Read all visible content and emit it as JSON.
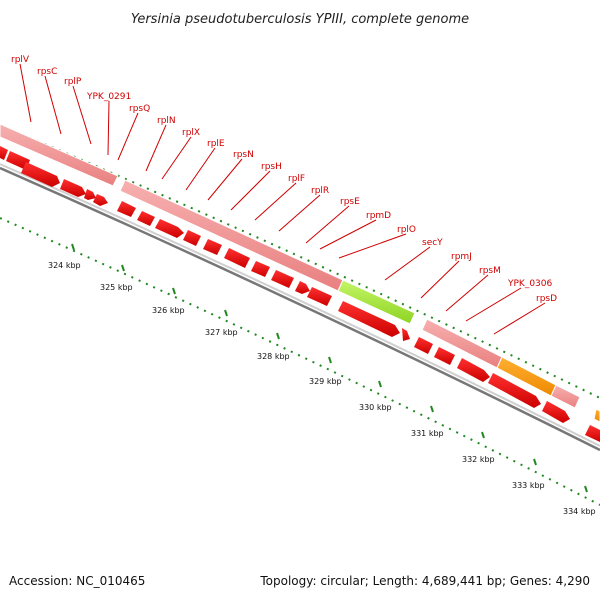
{
  "title": "Yersinia pseudotuberculosis YPIII, complete genome",
  "footer": {
    "accession": "Accession: NC_010465",
    "topology": "Topology: circular; Length: 4,689,441 bp; Genes: 4,290"
  },
  "colors": {
    "gene_label": "#d00000",
    "cds_arrow": "#ee0000",
    "gene_block": "#f09090",
    "rna_block": "#a8ee44",
    "orange_block": "#ff9900",
    "tick_green": "#228822",
    "backbone": "#777777"
  },
  "gene_labels": [
    "rplV",
    "rpsC",
    "rplP",
    "YPK_0291",
    "rpsQ",
    "rplN",
    "rplX",
    "rplE",
    "rpsN",
    "rpsH",
    "rplF",
    "rplR",
    "rpsE",
    "rpmD",
    "rplO",
    "secY",
    "rpmJ",
    "rpsM",
    "YPK_0306",
    "rpsD"
  ],
  "kbp_labels": [
    "324 kbp",
    "325 kbp",
    "326 kbp",
    "327 kbp",
    "328 kbp",
    "329 kbp",
    "330 kbp",
    "331 kbp",
    "332 kbp",
    "333 kbp",
    "334 kbp"
  ]
}
